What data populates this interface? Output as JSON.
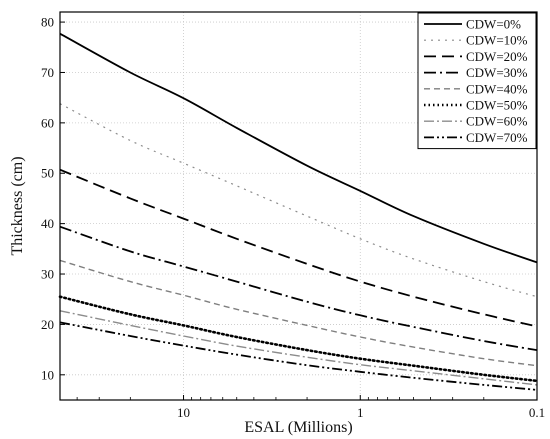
{
  "chart_data": {
    "type": "line",
    "title": "",
    "xlabel": "ESAL (Millions)",
    "ylabel": "Thickness (cm)",
    "x_scale": "log",
    "x_direction": "reversed",
    "xlim": [
      50,
      0.1
    ],
    "ylim": [
      5,
      82
    ],
    "x_ticks": [
      10,
      1,
      0.1
    ],
    "x_tick_labels": [
      "10",
      "1",
      "0.1"
    ],
    "y_ticks": [
      10,
      20,
      30,
      40,
      50,
      60,
      70,
      80
    ],
    "y_tick_labels": [
      "10",
      "20",
      "30",
      "40",
      "50",
      "60",
      "70",
      "80"
    ],
    "grid": true,
    "legend_position": "top-right",
    "x": [
      50,
      20,
      10,
      5,
      2,
      1,
      0.5,
      0.2,
      0.1
    ],
    "series": [
      {
        "name": "CDW=0%",
        "color": "#000000",
        "dash": "solid",
        "values": [
          77.7,
          70.0,
          64.9,
          59.0,
          51.5,
          46.5,
          41.5,
          36.0,
          32.3
        ]
      },
      {
        "name": "CDW=10%",
        "color": "#8c8c8c",
        "dash": "dot",
        "values": [
          63.8,
          56.5,
          52.0,
          47.5,
          41.5,
          37.0,
          33.0,
          28.5,
          25.5
        ]
      },
      {
        "name": "CDW=20%",
        "color": "#000000",
        "dash": "dash",
        "values": [
          50.7,
          45.0,
          41.0,
          37.0,
          32.0,
          28.5,
          25.5,
          22.0,
          19.6
        ]
      },
      {
        "name": "CDW=30%",
        "color": "#000000",
        "dash": "dashdot",
        "values": [
          39.4,
          34.5,
          31.5,
          28.5,
          24.5,
          21.8,
          19.5,
          16.7,
          14.9
        ]
      },
      {
        "name": "CDW=40%",
        "color": "#7f7f7f",
        "dash": "dash-short",
        "values": [
          32.7,
          28.5,
          25.8,
          23.0,
          19.8,
          17.5,
          15.5,
          13.2,
          11.8
        ]
      },
      {
        "name": "CDW=50%",
        "color": "#000000",
        "dash": "dotted-heavy",
        "values": [
          25.5,
          22.0,
          19.8,
          17.5,
          14.9,
          13.2,
          11.8,
          10.0,
          8.8
        ]
      },
      {
        "name": "CDW=60%",
        "color": "#8c8c8c",
        "dash": "dashdot-light",
        "values": [
          22.7,
          19.8,
          17.7,
          15.7,
          13.5,
          12.0,
          10.8,
          9.2,
          8.0
        ]
      },
      {
        "name": "CDW=70%",
        "color": "#000000",
        "dash": "dashdotdot",
        "values": [
          20.4,
          17.7,
          15.8,
          14.0,
          11.9,
          10.6,
          9.4,
          8.0,
          7.0
        ]
      }
    ]
  }
}
